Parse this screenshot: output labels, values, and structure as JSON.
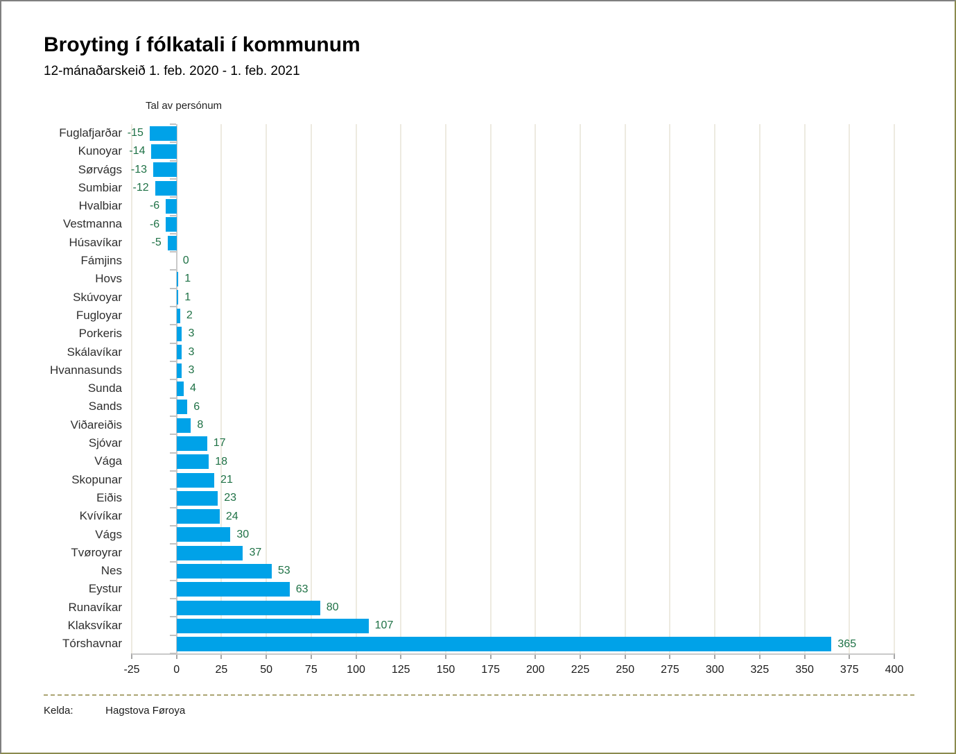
{
  "page": {
    "footer": {
      "source_label": "Kelda:",
      "source_value": "Hagstova Føroya"
    }
  },
  "chart_data": {
    "type": "bar",
    "orientation": "horizontal",
    "title": "Broyting í fólkatali í kommunum",
    "subtitle": "12-mánaðarskeið 1. feb. 2020 - 1. feb. 2021",
    "axis_title": "Tal av persónum",
    "categories": [
      "Fuglafjarðar",
      "Kunoyar",
      "Sørvágs",
      "Sumbiar",
      "Hvalbiar",
      "Vestmanna",
      "Húsavíkar",
      "Fámjins",
      "Hovs",
      "Skúvoyar",
      "Fugloyar",
      "Porkeris",
      "Skálavíkar",
      "Hvannasunds",
      "Sunda",
      "Sands",
      "Viðareiðis",
      "Sjóvar",
      "Vága",
      "Skopunar",
      "Eiðis",
      "Kvívíkar",
      "Vágs",
      "Tvøroyrar",
      "Nes",
      "Eystur",
      "Runavíkar",
      "Klaksvíkar",
      "Tórshavnar"
    ],
    "values": [
      -15,
      -14,
      -13,
      -12,
      -6,
      -6,
      -5,
      0,
      1,
      1,
      2,
      3,
      3,
      3,
      4,
      6,
      8,
      17,
      18,
      21,
      23,
      24,
      30,
      37,
      53,
      63,
      80,
      107,
      365
    ],
    "xlim": [
      -25,
      400
    ],
    "x_ticks": [
      -25,
      0,
      25,
      50,
      75,
      100,
      125,
      150,
      175,
      200,
      225,
      250,
      275,
      300,
      325,
      350,
      375,
      400
    ],
    "grid": true,
    "legend": "none",
    "bar_color": "#00a2e8",
    "value_label_color": "#1e7145",
    "gridline_color": "#edeae0",
    "axis_color": "#c9c9c9"
  }
}
